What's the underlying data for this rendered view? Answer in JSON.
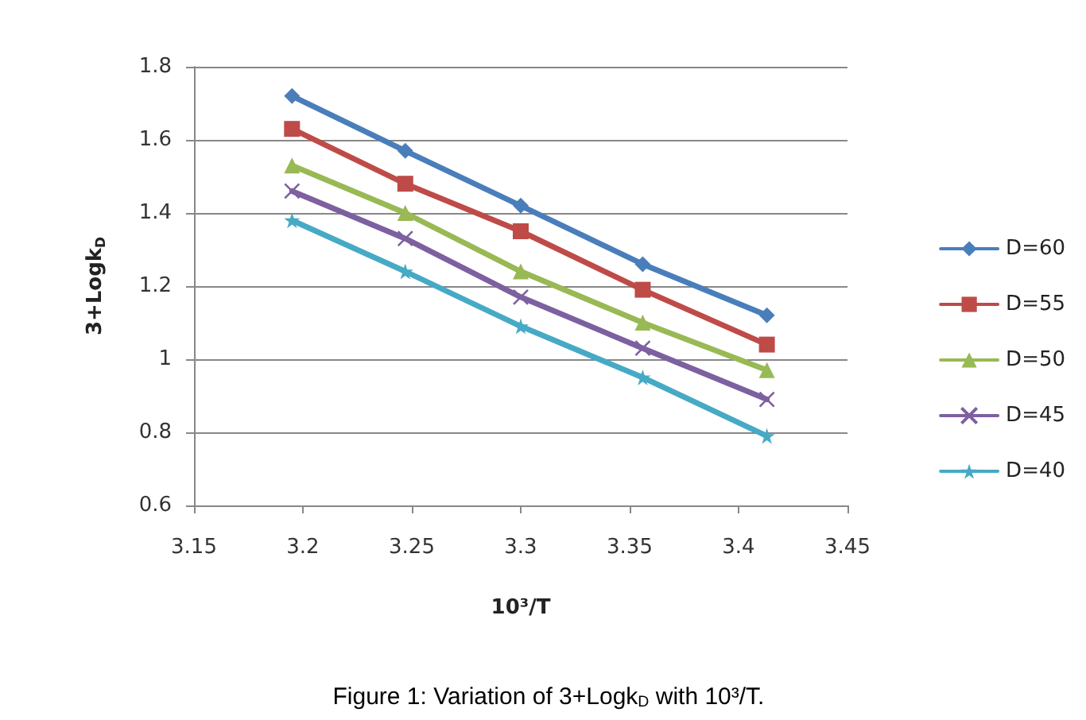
{
  "chart_data": {
    "type": "line",
    "title": "Figure 1: Variation of 3+Logk$_{D}$ with 10³/T.",
    "xlabel": "10³/T",
    "ylabel": "3+Logk$_{D}$",
    "x": [
      3.195,
      3.247,
      3.3,
      3.356,
      3.413
    ],
    "series": [
      {
        "name": "D=60",
        "color": "#4a7ebb",
        "marker": "diamond",
        "values": [
          1.72,
          1.57,
          1.42,
          1.26,
          1.12
        ]
      },
      {
        "name": "D=55",
        "color": "#be4b48",
        "marker": "square",
        "values": [
          1.63,
          1.48,
          1.35,
          1.19,
          1.04
        ]
      },
      {
        "name": "D=50",
        "color": "#98b954",
        "marker": "triangle",
        "values": [
          1.53,
          1.4,
          1.24,
          1.1,
          0.97
        ]
      },
      {
        "name": "D=45",
        "color": "#7d60a0",
        "marker": "cross",
        "values": [
          1.46,
          1.33,
          1.17,
          1.03,
          0.89
        ]
      },
      {
        "name": "D=40",
        "color": "#46aac5",
        "marker": "star",
        "values": [
          1.38,
          1.24,
          1.09,
          0.95,
          0.79
        ]
      }
    ],
    "xlim": [
      3.15,
      3.45
    ],
    "xticks": [
      3.15,
      3.2,
      3.25,
      3.3,
      3.35,
      3.4,
      3.45
    ],
    "ylim": [
      0.6,
      1.8
    ],
    "yticks": [
      0.6,
      0.8,
      1,
      1.2,
      1.4,
      1.6,
      1.8
    ],
    "grid": "y",
    "legend": "right",
    "line_style": "solid"
  }
}
